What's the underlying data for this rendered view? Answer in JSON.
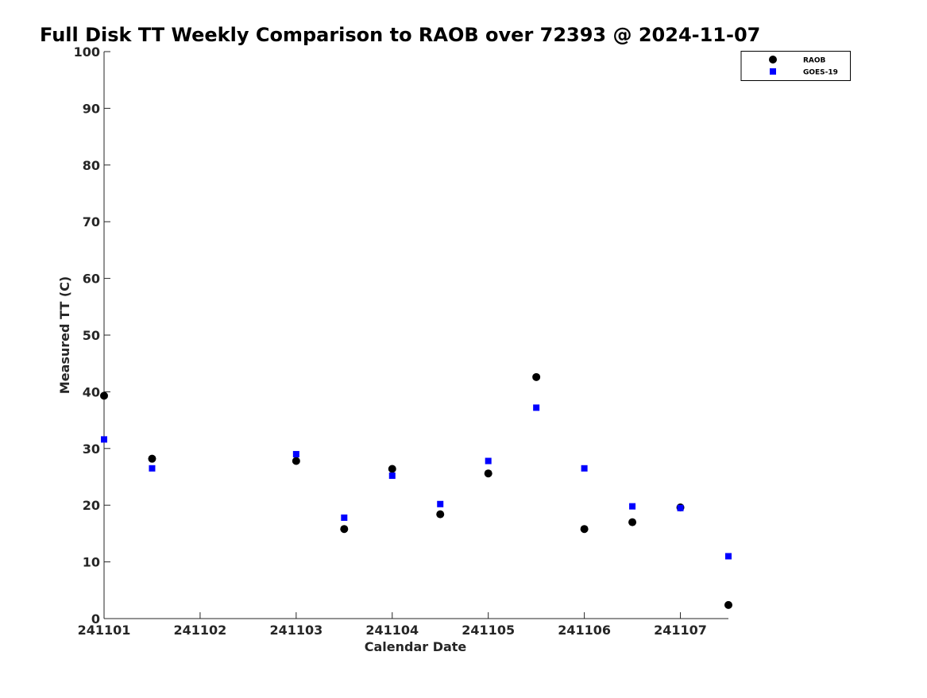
{
  "chart_data": {
    "type": "scatter",
    "title": "Full Disk TT Weekly Comparison to RAOB over 72393 @ 2024-11-07",
    "xlabel": "Calendar Date",
    "ylabel": "Measured TT (C)",
    "xlim": [
      "2024-11-01",
      "2024-11-07T12:00"
    ],
    "ylim": [
      0,
      100
    ],
    "x_ticks": [
      "2024-11-01",
      "2024-11-02",
      "2024-11-03",
      "2024-11-04",
      "2024-11-05",
      "2024-11-06",
      "2024-11-07"
    ],
    "x_tick_labels": [
      "241101",
      "241102",
      "241103",
      "241104",
      "241105",
      "241106",
      "241107"
    ],
    "y_ticks": [
      0,
      10,
      20,
      30,
      40,
      50,
      60,
      70,
      80,
      90,
      100
    ],
    "y_tick_labels": [
      "0",
      "10",
      "20",
      "30",
      "40",
      "50",
      "60",
      "70",
      "80",
      "90",
      "100"
    ],
    "grid": false,
    "legend_position": "top-right",
    "series": [
      {
        "name": "RAOB",
        "marker": "circle",
        "color": "#000000",
        "points": [
          {
            "x": "2024-11-01T00:00",
            "y": 39.3
          },
          {
            "x": "2024-11-01T12:00",
            "y": 28.2
          },
          {
            "x": "2024-11-03T00:00",
            "y": 27.8
          },
          {
            "x": "2024-11-03T12:00",
            "y": 15.8
          },
          {
            "x": "2024-11-04T00:00",
            "y": 26.4
          },
          {
            "x": "2024-11-04T12:00",
            "y": 18.4
          },
          {
            "x": "2024-11-05T00:00",
            "y": 25.6
          },
          {
            "x": "2024-11-05T12:00",
            "y": 42.6
          },
          {
            "x": "2024-11-06T00:00",
            "y": 15.8
          },
          {
            "x": "2024-11-06T12:00",
            "y": 17.0
          },
          {
            "x": "2024-11-07T00:00",
            "y": 19.6
          },
          {
            "x": "2024-11-07T12:00",
            "y": 2.4
          }
        ]
      },
      {
        "name": "GOES-19",
        "marker": "square",
        "color": "#0000ff",
        "points": [
          {
            "x": "2024-11-01T00:00",
            "y": 31.6
          },
          {
            "x": "2024-11-01T12:00",
            "y": 26.5
          },
          {
            "x": "2024-11-03T00:00",
            "y": 29.0
          },
          {
            "x": "2024-11-03T12:00",
            "y": 17.8
          },
          {
            "x": "2024-11-04T00:00",
            "y": 25.2
          },
          {
            "x": "2024-11-04T12:00",
            "y": 20.2
          },
          {
            "x": "2024-11-05T00:00",
            "y": 27.8
          },
          {
            "x": "2024-11-05T12:00",
            "y": 37.2
          },
          {
            "x": "2024-11-06T00:00",
            "y": 26.5
          },
          {
            "x": "2024-11-06T12:00",
            "y": 19.8
          },
          {
            "x": "2024-11-07T00:00",
            "y": 19.5
          },
          {
            "x": "2024-11-07T12:00",
            "y": 11.0
          }
        ]
      }
    ]
  }
}
